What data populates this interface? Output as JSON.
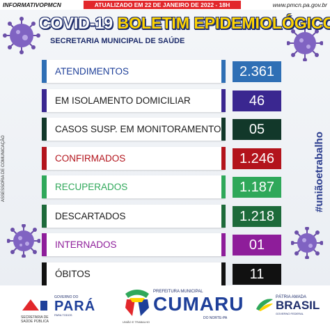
{
  "header": {
    "tag_left": "INFORMATIVOPMCN",
    "update": "ATUALIZADO EM 22 DE JANEIRO DE 2022 - 18H",
    "site": "www.pmcn.pa.gov.br"
  },
  "title": {
    "part1": "COVID-19",
    "part2": "BOLETIM EPIDEMIOLÓGICO",
    "subtitle": "SECRETARIA MUNICIPAL DE SAÚDE"
  },
  "side": {
    "left": "ASSESSORIA DE COMUNICAÇÃO",
    "right": "#uniãoetrabalho"
  },
  "rows": [
    {
      "label": "ATENDIMENTOS",
      "value": "2.361",
      "color": "#2f6fb5",
      "text_color": "#1e3f99"
    },
    {
      "label": "EM ISOLAMENTO DOMICILIAR",
      "value": "46",
      "color": "#3a2790",
      "text_color": "#1a1a1a"
    },
    {
      "label": "CASOS SUSP. EM MONITORAMENTO",
      "value": "05",
      "color": "#12382a",
      "text_color": "#1a1a1a"
    },
    {
      "label": "CONFIRMADOS",
      "value": "1.246",
      "color": "#b3141c",
      "text_color": "#b3141c"
    },
    {
      "label": "RECUPERADOS",
      "value": "1.187",
      "color": "#2fa85a",
      "text_color": "#2fa85a"
    },
    {
      "label": "DESCARTADOS",
      "value": "1.218",
      "color": "#1d6a3a",
      "text_color": "#1a1a1a"
    },
    {
      "label": "INTERNADOS",
      "value": "01",
      "color": "#8e1d9a",
      "text_color": "#8e1d9a"
    },
    {
      "label": "ÓBITOS",
      "value": "11",
      "color": "#111111",
      "text_color": "#1a1a1a"
    }
  ],
  "footer": {
    "state_secretaria": "SECRETARIA DE SAÚDE PÚBLICA",
    "para_gov": "GOVERNO DO",
    "para_name": "PARÁ",
    "para_tag": "PARA TODOS",
    "cumaru_pref": "PREFEITURA MUNICIPAL",
    "cumaru_name": "CUMARU",
    "cumaru_do": "DO NORTE-PA",
    "cumaru_slogan": "UNIÃO E TRABALHO",
    "brasil_t1": "PÁTRIA AMADA",
    "brasil_t2": "BRASIL",
    "brasil_t3": "GOVERNO FEDERAL"
  }
}
